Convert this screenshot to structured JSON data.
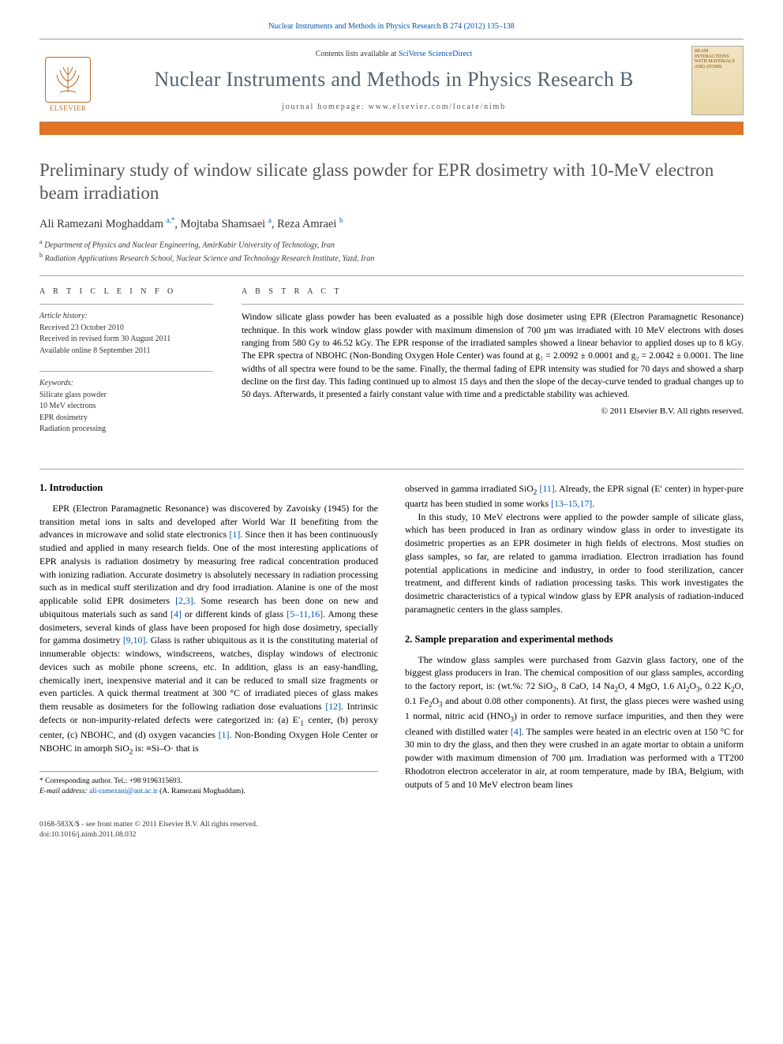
{
  "header": {
    "citation": "Nuclear Instruments and Methods in Physics Research B 274 (2012) 135–138",
    "publisher_logo_text": "ELSEVIER",
    "contents_prefix": "Contents lists available at ",
    "contents_link": "SciVerse ScienceDirect",
    "journal_name": "Nuclear Instruments and Methods in Physics Research B",
    "homepage_label": "journal homepage: ",
    "homepage_url": "www.elsevier.com/locate/nimb",
    "cover_text": "BEAM INTERACTIONS WITH MATERIALS AND ATOMS"
  },
  "article": {
    "title": "Preliminary study of window silicate glass powder for EPR dosimetry with 10-MeV electron beam irradiation",
    "authors_html": "Ali Ramezani Moghaddam <sup>a,*</sup>, Mojtaba Shamsaei <sup>a</sup>, Reza Amraei <sup>b</sup>",
    "affiliations": [
      "a Department of Physics and Nuclear Engineering, AmirKabir University of Technology, Iran",
      "b Radiation Applications Research School, Nuclear Science and Technology Research Institute, Yazd, Iran"
    ]
  },
  "info": {
    "label": "A R T I C L E   I N F O",
    "history_heading": "Article history:",
    "history": [
      "Received 23 October 2010",
      "Received in revised form 30 August 2011",
      "Available online 8 September 2011"
    ],
    "keywords_heading": "Keywords:",
    "keywords": [
      "Silicate glass powder",
      "10 MeV electrons",
      "EPR dosimetry",
      "Radiation processing"
    ]
  },
  "abstract": {
    "label": "A B S T R A C T",
    "text": "Window silicate glass powder has been evaluated as a possible high dose dosimeter using EPR (Electron Paramagnetic Resonance) technique. In this work window glass powder with maximum dimension of 700 μm was irradiated with 10 MeV electrons with doses ranging from 580 Gy to 46.52 kGy. The EPR response of the irradiated samples showed a linear behavior to applied doses up to 8 kGy. The EPR spectra of NBOHC (Non-Bonding Oxygen Hole Center) was found at g₁ = 2.0092 ± 0.0001 and g₂ = 2.0042 ± 0.0001. The line widths of all spectra were found to be the same. Finally, the thermal fading of EPR intensity was studied for 70 days and showed a sharp decline on the first day. This fading continued up to almost 15 days and then the slope of the decay-curve tended to gradual changes up to 50 days. Afterwards, it presented a fairly constant value with time and a predictable stability was achieved.",
    "copyright": "© 2011 Elsevier B.V. All rights reserved."
  },
  "body": {
    "sec1_heading": "1. Introduction",
    "sec1_p1": "EPR (Electron Paramagnetic Resonance) was discovered by Zavoisky (1945) for the transition metal ions in salts and developed after World War II benefiting from the advances in microwave and solid state electronics [1]. Since then it has been continuously studied and applied in many research fields. One of the most interesting applications of EPR analysis is radiation dosimetry by measuring free radical concentration produced with ionizing radiation. Accurate dosimetry is absolutely necessary in radiation processing such as in medical stuff sterilization and dry food irradiation. Alanine is one of the most applicable solid EPR dosimeters [2,3]. Some research has been done on new and ubiquitous materials such as sand [4] or different kinds of glass [5–11,16]. Among these dosimeters, several kinds of glass have been proposed for high dose dosimetry, specially for gamma dosimetry [9,10]. Glass is rather ubiquitous as it is the constituting material of innumerable objects: windows, windscreens, watches, display windows of electronic devices such as mobile phone screens, etc. In addition, glass is an easy-handling, chemically inert, inexpensive material and it can be reduced to small size fragments or even particles. A quick thermal treatment at 300 °C of irradiated pieces of glass makes them reusable as dosimeters for the following radiation dose evaluations [12]. Intrinsic defects or non-impurity-related defects were categorized in: (a) E′₁ center, (b) peroxy center, (c) NBOHC, and (d) oxygen vacancies [1]. Non-Bonding Oxygen Hole Center or NBOHC in amorph SiO₂ is: ≡Si–O· that is",
    "sec1_p2": "observed in gamma irradiated SiO₂ [11]. Already, the EPR signal (E′ center) in hyper-pure quartz has been studied in some works [13–15,17].",
    "sec1_p3": "In this study, 10 MeV electrons were applied to the powder sample of silicate glass, which has been produced in Iran as ordinary window glass in order to investigate its dosimetric properties as an EPR dosimeter in high fields of electrons. Most studies on glass samples, so far, are related to gamma irradiation. Electron irradiation has found potential applications in medicine and industry, in order to food sterilization, cancer treatment, and different kinds of radiation processing tasks. This work investigates the dosimetric characteristics of a typical window glass by EPR analysis of radiation-induced paramagnetic centers in the glass samples.",
    "sec2_heading": "2. Sample preparation and experimental methods",
    "sec2_p1": "The window glass samples were purchased from Gazvin glass factory, one of the biggest glass producers in Iran. The chemical composition of our glass samples, according to the factory report, is: (wt.%: 72 SiO₂, 8 CaO, 14 Na₂O, 4 MgO, 1.6 Al₂O₃, 0.22 K₂O, 0.1 Fe₂O₃ and about 0.08 other components). At first, the glass pieces were washed using 1 normal, nitric acid (HNO₃) in order to remove surface impurities, and then they were cleaned with distilled water [4]. The samples were heated in an electric oven at 150 °C for 30 min to dry the glass, and then they were crushed in an agate mortar to obtain a uniform powder with maximum dimension of 700 μm. Irradiation was performed with a TT200 Rhodotron electron accelerator in air, at room temperature, made by IBA, Belgium, with outputs of 5 and 10 MeV electron beam lines"
  },
  "corresponding": {
    "label": "* Corresponding author. Tel.: +98 9196315693.",
    "email_label": "E-mail address: ",
    "email": "ali-ramezani@aut.ac.ir",
    "email_suffix": " (A. Ramezani Moghaddam)."
  },
  "footer": {
    "line1": "0168-583X/$ - see front matter © 2011 Elsevier B.V. All rights reserved.",
    "line2": "doi:10.1016/j.nimb.2011.08.032"
  },
  "colors": {
    "orange": "#e37222",
    "link": "#0056b3",
    "title_gray": "#555",
    "journal_gray": "#556270"
  }
}
